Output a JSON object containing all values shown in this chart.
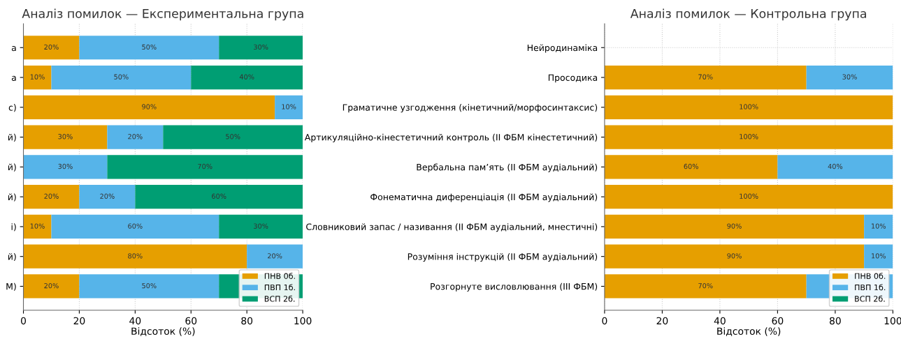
{
  "chart_data": [
    {
      "type": "bar",
      "orientation": "horizontal",
      "stacked": true,
      "title": "Аналіз помилок — Експериментальна група",
      "xlabel": "Відсоток (%)",
      "categories": [
        "а",
        "а",
        "с)",
        "й)",
        "й)",
        "й)",
        "і)",
        "й)",
        "М)"
      ],
      "series": [
        {
          "name": "ПНВ 0б.",
          "color": "#e69f00",
          "values": [
            20,
            10,
            90,
            30,
            0,
            20,
            10,
            80,
            20
          ],
          "value_labels": [
            "20%",
            "10%",
            "90%",
            "30%",
            null,
            "20%",
            "10%",
            "80%",
            "20%"
          ]
        },
        {
          "name": "ПВП 1б.",
          "color": "#56b4e9",
          "values": [
            50,
            50,
            10,
            20,
            30,
            20,
            60,
            20,
            50
          ],
          "value_labels": [
            "50%",
            "50%",
            "10%",
            "20%",
            "30%",
            "20%",
            "60%",
            "20%",
            "50%"
          ]
        },
        {
          "name": "ВСП 2б.",
          "color": "#009e73",
          "values": [
            30,
            40,
            0,
            50,
            70,
            60,
            30,
            0,
            30
          ],
          "value_labels": [
            "30%",
            "40%",
            null,
            "50%",
            "70%",
            "60%",
            "30%",
            null,
            null
          ]
        }
      ],
      "xlim": [
        0,
        100
      ],
      "xticks": [
        0,
        20,
        40,
        60,
        80,
        100
      ],
      "grid": true,
      "legend": "bottom right"
    },
    {
      "type": "bar",
      "orientation": "horizontal",
      "stacked": true,
      "title": "Аналіз помилок — Контрольна група",
      "xlabel": "Відсоток (%)",
      "categories": [
        "Нейродинаміка",
        "Просодика",
        "Граматичне узгодження (кінетичний/морфосинтаксис)",
        "Артикуляційно-кінестетичний контроль (ІІ ФБМ кінестетичний)",
        "Вербальна пам’ять (ІІ ФБМ аудіальний)",
        "Фонематична диференціація (ІІ ФБМ аудіальний)",
        "Словниковий запас / називання (ІІ ФБМ аудіальний, мнестичні)",
        "Розуміння інструкцій (ІІ ФБМ аудіальний)",
        "Розгорнуте висловлювання (ІІІ ФБМ)"
      ],
      "series": [
        {
          "name": "ПНВ 0б.",
          "color": "#e69f00",
          "values": [
            0,
            70,
            100,
            100,
            60,
            100,
            90,
            90,
            70
          ],
          "value_labels": [
            null,
            "70%",
            "100%",
            "100%",
            "60%",
            "100%",
            "90%",
            "90%",
            "70%"
          ]
        },
        {
          "name": "ПВП 1б.",
          "color": "#56b4e9",
          "values": [
            0,
            30,
            0,
            0,
            40,
            0,
            10,
            10,
            30
          ],
          "value_labels": [
            null,
            "30%",
            null,
            null,
            "40%",
            null,
            "10%",
            "10%",
            null
          ]
        },
        {
          "name": "ВСП 2б.",
          "color": "#009e73",
          "values": [
            0,
            0,
            0,
            0,
            0,
            0,
            0,
            0,
            0
          ],
          "value_labels": [
            null,
            null,
            null,
            null,
            null,
            null,
            null,
            null,
            null
          ]
        }
      ],
      "xlim": [
        0,
        100
      ],
      "xticks": [
        0,
        20,
        40,
        60,
        80,
        100
      ],
      "grid": true,
      "legend": "bottom right"
    }
  ]
}
